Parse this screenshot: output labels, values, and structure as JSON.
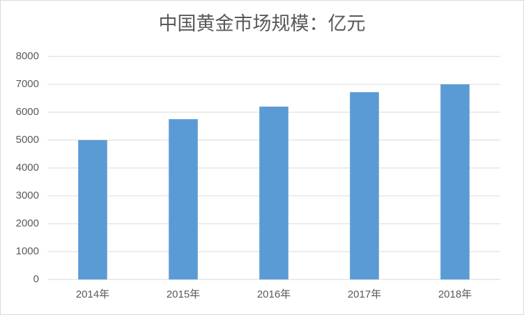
{
  "chart_data": {
    "type": "bar",
    "title": "中国黄金市场规模：亿元",
    "categories": [
      "2014年",
      "2015年",
      "2016年",
      "2017年",
      "2018年"
    ],
    "values": [
      5000,
      5750,
      6200,
      6720,
      7000
    ],
    "color": "#5b9bd5",
    "ylim": [
      0,
      8000
    ],
    "yticks": [
      0,
      1000,
      2000,
      3000,
      4000,
      5000,
      6000,
      7000,
      8000
    ],
    "grid": true
  }
}
